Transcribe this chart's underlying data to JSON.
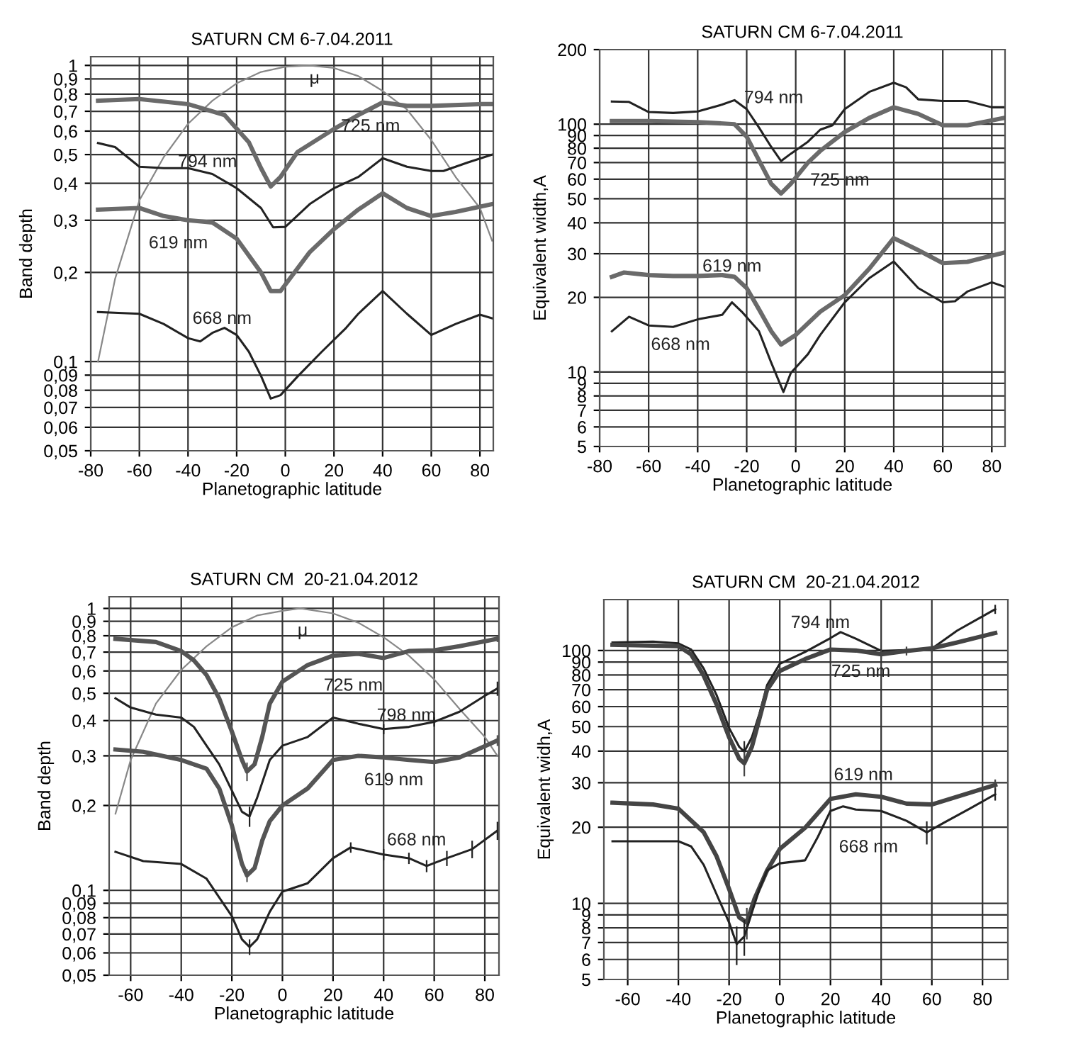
{
  "chart_data": [
    {
      "type": "line",
      "title": "SATURN CM 6-7.04.2011",
      "xlabel": "Planetographic latitude",
      "ylabel": "Band depth",
      "log": "y",
      "grid": true,
      "legend": false,
      "marker": "none",
      "line_style": "solid",
      "xlim": [
        -80,
        85.5
      ],
      "xticks": [
        -80,
        -60,
        -40,
        -20,
        0,
        20,
        40,
        60,
        80
      ],
      "ylim": [
        0.05,
        1.07
      ],
      "yticks": [
        {
          "value": 0.05,
          "label": "0,05"
        },
        {
          "value": 0.06,
          "label": "0,06"
        },
        {
          "value": 0.07,
          "label": "0,07"
        },
        {
          "value": 0.08,
          "label": "0,08"
        },
        {
          "value": 0.09,
          "label": "0,09"
        },
        {
          "value": 0.1,
          "label": "0,1"
        },
        {
          "value": 0.2,
          "label": "0,2"
        },
        {
          "value": 0.3,
          "label": "0,3"
        },
        {
          "value": 0.4,
          "label": "0,4"
        },
        {
          "value": 0.5,
          "label": "0,5"
        },
        {
          "value": 0.6,
          "label": "0,6"
        },
        {
          "value": 0.7,
          "label": "0,7"
        },
        {
          "value": 0.8,
          "label": "0,8"
        },
        {
          "value": 0.9,
          "label": "0,9"
        },
        1
      ],
      "series": [
        {
          "name": "μ",
          "color": "#888888",
          "x": [
            -77,
            -70,
            -60,
            -50,
            -40,
            -30,
            -20,
            -10,
            0,
            10,
            20,
            30,
            40,
            50,
            60,
            70,
            80,
            85
          ],
          "values": [
            0.1,
            0.19,
            0.35,
            0.49,
            0.635,
            0.76,
            0.87,
            0.95,
            0.99,
            1.0,
            0.98,
            0.92,
            0.82,
            0.71,
            0.56,
            0.42,
            0.33,
            0.256
          ]
        },
        {
          "name": "725 nm",
          "color": "#6a6a6a",
          "x": [
            -77,
            -60,
            -40,
            -25,
            -15,
            -10,
            -6,
            -2,
            5,
            20,
            30,
            40,
            50,
            60,
            80,
            85
          ],
          "values": [
            0.76,
            0.77,
            0.74,
            0.68,
            0.55,
            0.45,
            0.39,
            0.42,
            0.51,
            0.61,
            0.68,
            0.75,
            0.73,
            0.73,
            0.74,
            0.74
          ]
        },
        {
          "name": "794 nm",
          "color": "#222222",
          "x": [
            -77,
            -70,
            -60,
            -50,
            -40,
            -30,
            -20,
            -10,
            -5,
            0,
            10,
            20,
            30,
            40,
            50,
            60,
            65,
            75,
            85
          ],
          "values": [
            0.547,
            0.53,
            0.455,
            0.45,
            0.45,
            0.43,
            0.385,
            0.33,
            0.284,
            0.285,
            0.34,
            0.385,
            0.42,
            0.486,
            0.455,
            0.44,
            0.44,
            0.47,
            0.5
          ]
        },
        {
          "name": "619 nm",
          "color": "#6a6a6a",
          "x": [
            -77,
            -60,
            -50,
            -40,
            -30,
            -20,
            -10,
            -6,
            -2,
            10,
            20,
            30,
            40,
            50,
            60,
            70,
            85
          ],
          "values": [
            0.326,
            0.33,
            0.31,
            0.3,
            0.295,
            0.26,
            0.2,
            0.173,
            0.173,
            0.234,
            0.28,
            0.326,
            0.37,
            0.33,
            0.31,
            0.32,
            0.34
          ]
        },
        {
          "name": "668 nm",
          "color": "#222222",
          "x": [
            -77,
            -60,
            -50,
            -40,
            -35,
            -30,
            -25,
            -20,
            -15,
            -10,
            -6,
            -2,
            5,
            15,
            25,
            30,
            40,
            50,
            60,
            70,
            80,
            85
          ],
          "values": [
            0.147,
            0.145,
            0.134,
            0.12,
            0.117,
            0.125,
            0.13,
            0.123,
            0.108,
            0.0895,
            0.075,
            0.077,
            0.089,
            0.108,
            0.13,
            0.145,
            0.173,
            0.145,
            0.123,
            0.134,
            0.144,
            0.14
          ]
        }
      ]
    },
    {
      "type": "line",
      "title": "SATURN CM 6-7.04.2011",
      "xlabel": "Planetographic latitude",
      "ylabel": "Equivalent width,A",
      "log": "y",
      "grid": true,
      "legend": false,
      "marker": "none",
      "line_style": "solid",
      "xlim": [
        -80,
        85.4
      ],
      "xticks": [
        -80,
        -60,
        -40,
        -20,
        0,
        20,
        40,
        60,
        80
      ],
      "ylim": [
        5,
        200
      ],
      "yticks": [
        5,
        6,
        7,
        8,
        9,
        10,
        20,
        30,
        40,
        50,
        60,
        70,
        80,
        90,
        100,
        200
      ],
      "series": [
        {
          "name": "794 nm",
          "color": "#222222",
          "x": [
            -75,
            -68,
            -60,
            -50,
            -40,
            -30,
            -25,
            -20,
            -15,
            -10,
            -6,
            -2,
            5,
            10,
            15,
            20,
            30,
            40,
            45,
            50,
            60,
            70,
            80,
            85
          ],
          "values": [
            123.5,
            123,
            112,
            111,
            112.5,
            120,
            125,
            115,
            97,
            81,
            71,
            76,
            85,
            95,
            99,
            115,
            135,
            147,
            141,
            126,
            124,
            124,
            117,
            117
          ]
        },
        {
          "name": "725 nm",
          "color": "#6a6a6a",
          "x": [
            -75,
            -60,
            -40,
            -25,
            -20,
            -15,
            -10,
            -6,
            -2,
            5,
            10,
            20,
            30,
            40,
            50,
            60,
            70,
            85
          ],
          "values": [
            103,
            103,
            102,
            100,
            89,
            71.5,
            57.5,
            52.5,
            57.5,
            70,
            78,
            93,
            106,
            117,
            110,
            99,
            99,
            106
          ]
        },
        {
          "name": "619 nm",
          "color": "#6a6a6a",
          "x": [
            -75,
            -70,
            -60,
            -50,
            -40,
            -30,
            -25,
            -20,
            -15,
            -10,
            -6,
            0,
            10,
            20,
            30,
            40,
            50,
            60,
            70,
            85
          ],
          "values": [
            24.2,
            25.2,
            24.6,
            24.4,
            24.4,
            24.6,
            24.2,
            21.8,
            17.9,
            14.6,
            12.9,
            14.1,
            17.5,
            20.4,
            26.1,
            34.7,
            31,
            27.5,
            27.8,
            30.3
          ]
        },
        {
          "name": "668 nm",
          "color": "#222222",
          "x": [
            -75,
            -68,
            -60,
            -50,
            -40,
            -30,
            -26,
            -22,
            -15,
            -10,
            -5,
            -2,
            5,
            10,
            20,
            30,
            40,
            50,
            60,
            65,
            70,
            80,
            85
          ],
          "values": [
            14.6,
            16.7,
            15.4,
            15.2,
            16.3,
            17,
            19.1,
            17.5,
            14.6,
            10.9,
            8.3,
            9.9,
            11.8,
            14.1,
            19.1,
            23.9,
            27.9,
            21.8,
            19.1,
            19.3,
            21.1,
            23,
            22.1
          ]
        }
      ]
    },
    {
      "type": "line",
      "title": "SATURN CM  20-21.04.2012",
      "xlabel": "Planetographic latitude",
      "ylabel": "Band depth",
      "log": "y",
      "grid": true,
      "legend": false,
      "marker": "none",
      "line_style": "solid",
      "xlim": [
        -68.5,
        85.6
      ],
      "xticks": [
        -60,
        -40,
        -20,
        0,
        20,
        40,
        60,
        80
      ],
      "ylim": [
        0.05,
        1.1
      ],
      "yticks": [
        {
          "value": 0.05,
          "label": "0,05"
        },
        {
          "value": 0.06,
          "label": "0,06"
        },
        {
          "value": 0.07,
          "label": "0,07"
        },
        {
          "value": 0.08,
          "label": "0,08"
        },
        {
          "value": 0.09,
          "label": "0,09"
        },
        {
          "value": 0.1,
          "label": "0,1"
        },
        {
          "value": 0.2,
          "label": "0,2"
        },
        {
          "value": 0.3,
          "label": "0,3"
        },
        {
          "value": 0.4,
          "label": "0,4"
        },
        {
          "value": 0.5,
          "label": "0,5"
        },
        {
          "value": 0.6,
          "label": "0,6"
        },
        {
          "value": 0.7,
          "label": "0,7"
        },
        {
          "value": 0.8,
          "label": "0,8"
        },
        {
          "value": 0.9,
          "label": "0,9"
        },
        1
      ],
      "series": [
        {
          "name": "μ",
          "color": "#888888",
          "x": [
            -66,
            -60,
            -50,
            -40,
            -30,
            -20,
            -10,
            0,
            7,
            20,
            30,
            40,
            50,
            60,
            70,
            80,
            85
          ],
          "values": [
            0.187,
            0.29,
            0.46,
            0.605,
            0.734,
            0.857,
            0.944,
            0.98,
            1.0,
            0.96,
            0.89,
            0.79,
            0.68,
            0.56,
            0.44,
            0.35,
            0.3
          ]
        },
        {
          "name": "725 nm",
          "color": "#555555",
          "x": [
            -66,
            -50,
            -40,
            -35,
            -30,
            -25,
            -20,
            -16,
            -14,
            -11,
            -8,
            -5,
            0,
            10,
            20,
            30,
            40,
            50,
            60,
            70,
            85
          ],
          "values": [
            0.78,
            0.76,
            0.706,
            0.654,
            0.58,
            0.48,
            0.366,
            0.29,
            0.264,
            0.28,
            0.35,
            0.46,
            0.55,
            0.63,
            0.68,
            0.69,
            0.667,
            0.706,
            0.71,
            0.735,
            0.78
          ],
          "errors": [
            null,
            null,
            null,
            null,
            null,
            null,
            null,
            null,
            0.02,
            null,
            null,
            null,
            null,
            null,
            null,
            null,
            null,
            null,
            null,
            null,
            0.02
          ]
        },
        {
          "name": "798 nm",
          "color": "#222222",
          "x": [
            -66,
            -60,
            -50,
            -40,
            -35,
            -30,
            -25,
            -20,
            -16,
            -13,
            -10,
            -5,
            0,
            10,
            20,
            25,
            30,
            40,
            50,
            60,
            70,
            80,
            85
          ],
          "values": [
            0.48,
            0.445,
            0.42,
            0.41,
            0.38,
            0.326,
            0.28,
            0.226,
            0.19,
            0.183,
            0.213,
            0.29,
            0.326,
            0.35,
            0.41,
            0.4,
            0.39,
            0.373,
            0.38,
            0.396,
            0.43,
            0.49,
            0.52
          ],
          "errors": [
            null,
            null,
            null,
            null,
            null,
            null,
            null,
            null,
            null,
            0.015,
            null,
            null,
            null,
            null,
            null,
            null,
            null,
            0.015,
            null,
            0.015,
            null,
            null,
            0.03
          ]
        },
        {
          "name": "619 nm",
          "color": "#555555",
          "x": [
            -66,
            -55,
            -40,
            -30,
            -25,
            -20,
            -16,
            -14,
            -11,
            -8,
            -5,
            0,
            10,
            20,
            30,
            40,
            50,
            60,
            70,
            85
          ],
          "values": [
            0.316,
            0.31,
            0.29,
            0.27,
            0.23,
            0.17,
            0.124,
            0.113,
            0.12,
            0.15,
            0.176,
            0.2,
            0.23,
            0.29,
            0.3,
            0.296,
            0.29,
            0.285,
            0.296,
            0.34
          ],
          "errors": [
            null,
            null,
            null,
            null,
            null,
            null,
            null,
            0.006,
            null,
            null,
            null,
            null,
            null,
            null,
            null,
            null,
            null,
            null,
            null,
            0.015
          ]
        },
        {
          "name": "668 nm",
          "color": "#222222",
          "x": [
            -66,
            -55,
            -40,
            -30,
            -20,
            -16,
            -13,
            -10,
            -5,
            0,
            10,
            20,
            27,
            40,
            50,
            57,
            65,
            75,
            85
          ],
          "values": [
            0.137,
            0.127,
            0.124,
            0.11,
            0.081,
            0.067,
            0.063,
            0.067,
            0.084,
            0.099,
            0.106,
            0.13,
            0.142,
            0.134,
            0.13,
            0.122,
            0.13,
            0.14,
            0.163
          ],
          "errors": [
            null,
            null,
            null,
            null,
            null,
            null,
            0.004,
            null,
            null,
            null,
            null,
            null,
            0.006,
            0.006,
            0.006,
            0.006,
            0.008,
            0.01,
            0.012
          ]
        }
      ]
    },
    {
      "type": "line",
      "title": "SATURN CM  20-21.04.2012",
      "xlabel": "Planetographic latitude",
      "ylabel": "Equivalent widh,A",
      "log": "y",
      "grid": true,
      "legend": false,
      "marker": "none",
      "line_style": "solid",
      "xlim": [
        -69.4,
        90
      ],
      "xticks": [
        -60,
        -40,
        -20,
        0,
        20,
        40,
        60,
        80
      ],
      "ylim": [
        5,
        159
      ],
      "yticks": [
        5,
        6,
        7,
        8,
        9,
        10,
        20,
        30,
        40,
        50,
        60,
        70,
        80,
        90,
        100
      ],
      "series": [
        {
          "name": "794 nm",
          "color": "#222222",
          "x": [
            -66,
            -50,
            -40,
            -35,
            -30,
            -25,
            -20,
            -16,
            -14,
            -11,
            -8,
            -5,
            0,
            10,
            20,
            24,
            30,
            40,
            50,
            60,
            70,
            80,
            85
          ],
          "values": [
            107.6,
            108.5,
            106.7,
            101,
            84.8,
            66.9,
            49.4,
            41.6,
            39.8,
            45.4,
            56.3,
            73,
            88.6,
            98.7,
            112,
            118.3,
            111.4,
            99.6,
            100.4,
            101.7,
            119.9,
            136.5,
            145.6
          ],
          "errors": [
            null,
            null,
            null,
            null,
            null,
            null,
            null,
            null,
            4,
            null,
            null,
            null,
            null,
            null,
            null,
            null,
            null,
            null,
            null,
            null,
            null,
            null,
            6
          ]
        },
        {
          "name": "725 nm",
          "color": "#444444",
          "x": [
            -66,
            -40,
            -35,
            -30,
            -25,
            -20,
            -16,
            -14,
            -11,
            -8,
            -5,
            0,
            10,
            20,
            30,
            40,
            50,
            60,
            70,
            85
          ],
          "values": [
            105.3,
            104,
            96.6,
            79.5,
            61.4,
            45.4,
            37.3,
            35.8,
            41.6,
            53.9,
            69.9,
            83,
            92.5,
            100.9,
            100,
            96.6,
            99.6,
            102,
            107.6,
            117.3
          ],
          "errors": [
            null,
            null,
            null,
            null,
            null,
            null,
            null,
            4,
            null,
            null,
            null,
            null,
            null,
            null,
            null,
            4,
            4,
            4,
            null,
            null
          ]
        },
        {
          "name": "619 nm",
          "color": "#444444",
          "x": [
            -66,
            -50,
            -40,
            -30,
            -25,
            -20,
            -16,
            -13,
            -10,
            -5,
            0,
            10,
            20,
            30,
            40,
            50,
            60,
            70,
            85
          ],
          "values": [
            25.0,
            24.6,
            23.7,
            19.1,
            15.4,
            11.4,
            8.8,
            8.4,
            10.4,
            13.5,
            16.4,
            19.9,
            25.9,
            27.0,
            26.4,
            24.8,
            24.6,
            26.4,
            29.4
          ],
          "errors": [
            null,
            null,
            null,
            null,
            null,
            null,
            null,
            1.2,
            null,
            null,
            null,
            null,
            null,
            null,
            null,
            null,
            null,
            null,
            1.5
          ]
        },
        {
          "name": "668 nm",
          "color": "#222222",
          "x": [
            -66,
            -40,
            -35,
            -30,
            -25,
            -20,
            -17,
            -14,
            -11,
            -8,
            -5,
            0,
            10,
            15,
            20,
            25,
            30,
            40,
            50,
            58,
            65,
            75,
            85
          ],
          "values": [
            17.6,
            17.6,
            16.8,
            14.2,
            10.9,
            8.4,
            6.9,
            7.4,
            9.2,
            11.4,
            13.5,
            14.4,
            14.8,
            18.3,
            23.2,
            24.2,
            23.5,
            23.2,
            21.2,
            19.1,
            20.9,
            23.7,
            27.0
          ],
          "errors": [
            null,
            null,
            null,
            null,
            null,
            null,
            1.2,
            1.2,
            null,
            null,
            null,
            null,
            null,
            null,
            null,
            null,
            null,
            null,
            null,
            2,
            null,
            null,
            1.5
          ]
        }
      ]
    }
  ]
}
